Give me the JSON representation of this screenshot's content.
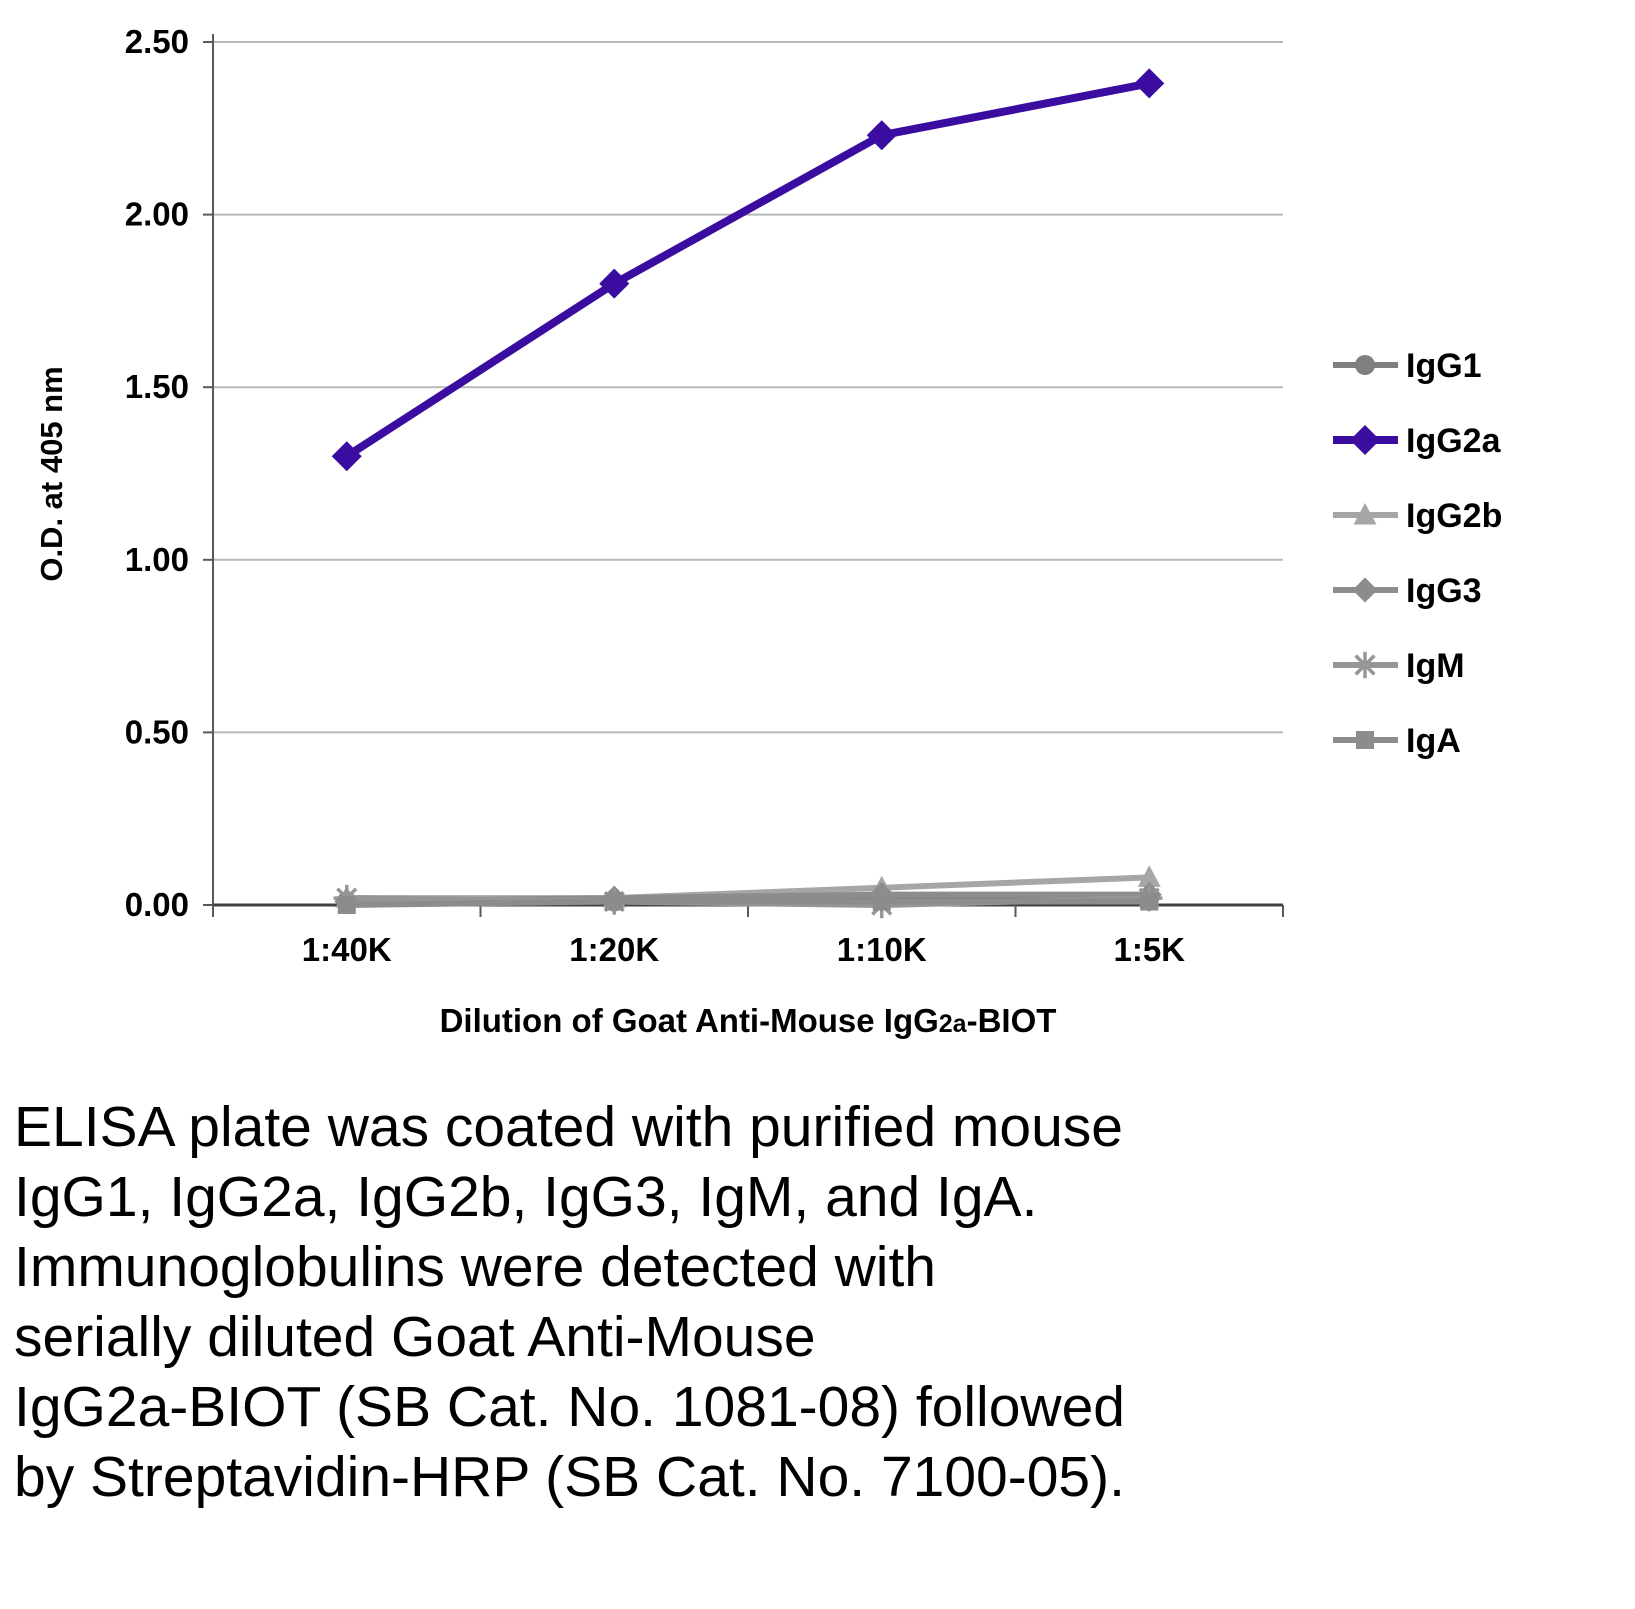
{
  "chart_data": {
    "type": "line",
    "title": "",
    "ylabel": "O.D. at 405 nm",
    "xlabel_parts": [
      "Dilution of Goat Anti-Mouse IgG",
      "2a",
      "-BIOT"
    ],
    "categories": [
      "1:40K",
      "1:20K",
      "1:10K",
      "1:5K"
    ],
    "ylim": [
      0,
      2.5
    ],
    "yticks": [
      {
        "value": 0.0,
        "label": "0.00"
      },
      {
        "value": 0.5,
        "label": "0.50"
      },
      {
        "value": 1.0,
        "label": "1.00"
      },
      {
        "value": 1.5,
        "label": "1.50"
      },
      {
        "value": 2.0,
        "label": "2.00"
      },
      {
        "value": 2.5,
        "label": "2.50"
      }
    ],
    "grid": "horizontal",
    "legend_position": "right",
    "colors": {
      "grid": "#b7b7b7",
      "axis": "#595959"
    },
    "series": [
      {
        "name": "IgG1",
        "color": "#7f7f7f",
        "marker": "circle",
        "line_width": 6,
        "marker_size": 10,
        "values": [
          0.01,
          0.01,
          0.02,
          0.02
        ]
      },
      {
        "name": "IgG2a",
        "color": "#3a0ca0",
        "marker": "diamond",
        "line_width": 8,
        "marker_size": 12,
        "values": [
          1.3,
          1.8,
          2.23,
          2.38
        ]
      },
      {
        "name": "IgG2b",
        "color": "#a6a6a6",
        "marker": "triangle",
        "line_width": 6,
        "marker_size": 10,
        "values": [
          0.02,
          0.02,
          0.05,
          0.08
        ]
      },
      {
        "name": "IgG3",
        "color": "#8c8c8c",
        "marker": "diamond",
        "line_width": 6,
        "marker_size": 10,
        "values": [
          0.01,
          0.02,
          0.03,
          0.03
        ]
      },
      {
        "name": "IgM",
        "color": "#969696",
        "marker": "asterisk",
        "line_width": 6,
        "marker_size": 11,
        "values": [
          0.02,
          0.01,
          0.0,
          0.02
        ]
      },
      {
        "name": "IgA",
        "color": "#8c8c8c",
        "marker": "square",
        "line_width": 6,
        "marker_size": 9,
        "values": [
          0.0,
          0.01,
          0.01,
          0.01
        ]
      }
    ]
  },
  "caption": {
    "lines": [
      "ELISA plate was coated with purified mouse",
      "IgG1, IgG2a, IgG2b, IgG3, IgM, and IgA.",
      "Immunoglobulins were detected with",
      "serially diluted Goat Anti-Mouse",
      "IgG2a-BIOT (SB Cat. No. 1081-08) followed",
      "by Streptavidin-HRP (SB Cat. No. 7100-05)."
    ]
  }
}
